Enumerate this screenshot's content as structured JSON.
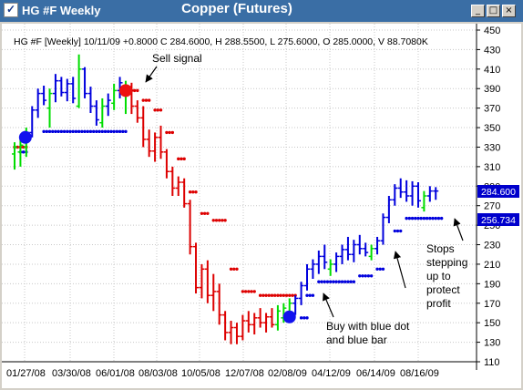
{
  "window": {
    "app_title": "HG #F Weekly",
    "chart_heading": "Copper (Futures)",
    "buttons": {
      "minimize": "_",
      "maximize": "□",
      "close": "×"
    }
  },
  "info_line": "HG #F [Weekly] 10/11/09 +0.8000 C 284.6000, H 288.5500, L 275.6000, O 285.0000, V 88.7080K",
  "annotations": {
    "sell": "Sell signal",
    "buy": [
      "Buy with blue dot",
      "and blue bar"
    ],
    "stops": [
      "Stops",
      "stepping",
      "up to",
      "protect",
      "profit"
    ]
  },
  "price_flags": {
    "last_price": "284.600",
    "stop_level": "256.734"
  },
  "colors": {
    "up_bar": "#00dd00",
    "down_bar": "#dd0000",
    "uptrend_bar": "#0000dd",
    "price_flag": "#0000cc"
  },
  "chart_data": {
    "type": "ohlc_bar",
    "symbol": "HG #F",
    "interval": "Weekly",
    "title": "Copper (Futures)",
    "ylim": [
      110,
      450
    ],
    "y_ticks": [
      110,
      130,
      150,
      170,
      190,
      210,
      230,
      250,
      270,
      290,
      310,
      330,
      350,
      370,
      390,
      410,
      430,
      450
    ],
    "x_ticks": [
      "01/27/08",
      "03/30/08",
      "06/01/08",
      "08/03/08",
      "10/05/08",
      "12/07/08",
      "02/08/09",
      "04/12/09",
      "06/14/09",
      "08/16/09"
    ],
    "grid": true,
    "last_close": 284.6,
    "last_stop": 256.734,
    "bars": [
      {
        "t": "up",
        "o": 323,
        "h": 335,
        "l": 307,
        "c": 330
      },
      {
        "t": "up",
        "o": 325,
        "h": 340,
        "l": 310,
        "c": 332
      },
      {
        "t": "up",
        "o": 330,
        "h": 350,
        "l": 320,
        "c": 345
      },
      {
        "t": "blue",
        "o": 345,
        "h": 372,
        "l": 340,
        "c": 368
      },
      {
        "t": "blue",
        "o": 368,
        "h": 390,
        "l": 360,
        "c": 385
      },
      {
        "t": "blue",
        "o": 385,
        "h": 393,
        "l": 373,
        "c": 378
      },
      {
        "t": "up",
        "o": 370,
        "h": 390,
        "l": 350,
        "c": 385
      },
      {
        "t": "blue",
        "o": 385,
        "h": 405,
        "l": 376,
        "c": 398
      },
      {
        "t": "blue",
        "o": 398,
        "h": 402,
        "l": 382,
        "c": 386
      },
      {
        "t": "blue",
        "o": 386,
        "h": 400,
        "l": 377,
        "c": 395
      },
      {
        "t": "blue",
        "o": 395,
        "h": 402,
        "l": 375,
        "c": 380
      },
      {
        "t": "up",
        "o": 372,
        "h": 425,
        "l": 370,
        "c": 410
      },
      {
        "t": "blue",
        "o": 410,
        "h": 412,
        "l": 380,
        "c": 385
      },
      {
        "t": "blue",
        "o": 385,
        "h": 392,
        "l": 365,
        "c": 372
      },
      {
        "t": "blue",
        "o": 372,
        "h": 378,
        "l": 352,
        "c": 358
      },
      {
        "t": "up",
        "o": 355,
        "h": 380,
        "l": 350,
        "c": 372
      },
      {
        "t": "blue",
        "o": 372,
        "h": 385,
        "l": 362,
        "c": 378
      },
      {
        "t": "up",
        "o": 375,
        "h": 395,
        "l": 368,
        "c": 388
      },
      {
        "t": "blue",
        "o": 388,
        "h": 402,
        "l": 380,
        "c": 396
      },
      {
        "t": "up",
        "o": 385,
        "h": 398,
        "l": 364,
        "c": 392
      },
      {
        "t": "down",
        "o": 392,
        "h": 396,
        "l": 364,
        "c": 372
      },
      {
        "t": "down",
        "o": 372,
        "h": 378,
        "l": 355,
        "c": 360
      },
      {
        "t": "down",
        "o": 360,
        "h": 372,
        "l": 330,
        "c": 338
      },
      {
        "t": "down",
        "o": 338,
        "h": 348,
        "l": 320,
        "c": 326
      },
      {
        "t": "down",
        "o": 326,
        "h": 345,
        "l": 315,
        "c": 340
      },
      {
        "t": "down",
        "o": 340,
        "h": 352,
        "l": 318,
        "c": 325
      },
      {
        "t": "down",
        "o": 325,
        "h": 328,
        "l": 298,
        "c": 305
      },
      {
        "t": "down",
        "o": 305,
        "h": 310,
        "l": 280,
        "c": 288
      },
      {
        "t": "down",
        "o": 288,
        "h": 300,
        "l": 280,
        "c": 294
      },
      {
        "t": "down",
        "o": 294,
        "h": 298,
        "l": 268,
        "c": 272
      },
      {
        "t": "down",
        "o": 272,
        "h": 276,
        "l": 220,
        "c": 228
      },
      {
        "t": "down",
        "o": 228,
        "h": 232,
        "l": 180,
        "c": 186
      },
      {
        "t": "down",
        "o": 186,
        "h": 210,
        "l": 175,
        "c": 205
      },
      {
        "t": "down",
        "o": 205,
        "h": 214,
        "l": 170,
        "c": 178
      },
      {
        "t": "down",
        "o": 178,
        "h": 200,
        "l": 162,
        "c": 182
      },
      {
        "t": "down",
        "o": 182,
        "h": 190,
        "l": 148,
        "c": 158
      },
      {
        "t": "down",
        "o": 158,
        "h": 162,
        "l": 132,
        "c": 140
      },
      {
        "t": "down",
        "o": 140,
        "h": 152,
        "l": 128,
        "c": 145
      },
      {
        "t": "down",
        "o": 145,
        "h": 150,
        "l": 128,
        "c": 136
      },
      {
        "t": "down",
        "o": 136,
        "h": 158,
        "l": 132,
        "c": 152
      },
      {
        "t": "down",
        "o": 152,
        "h": 162,
        "l": 140,
        "c": 148
      },
      {
        "t": "down",
        "o": 148,
        "h": 160,
        "l": 138,
        "c": 155
      },
      {
        "t": "down",
        "o": 155,
        "h": 165,
        "l": 145,
        "c": 150
      },
      {
        "t": "down",
        "o": 150,
        "h": 160,
        "l": 140,
        "c": 156
      },
      {
        "t": "down",
        "o": 156,
        "h": 165,
        "l": 145,
        "c": 148
      },
      {
        "t": "up",
        "o": 148,
        "h": 168,
        "l": 142,
        "c": 162
      },
      {
        "t": "up",
        "o": 155,
        "h": 170,
        "l": 150,
        "c": 165
      },
      {
        "t": "up",
        "o": 160,
        "h": 175,
        "l": 155,
        "c": 170
      },
      {
        "t": "blue",
        "o": 170,
        "h": 178,
        "l": 158,
        "c": 175
      },
      {
        "t": "blue",
        "o": 175,
        "h": 192,
        "l": 168,
        "c": 188
      },
      {
        "t": "blue",
        "o": 188,
        "h": 210,
        "l": 183,
        "c": 205
      },
      {
        "t": "blue",
        "o": 205,
        "h": 215,
        "l": 195,
        "c": 210
      },
      {
        "t": "blue",
        "o": 210,
        "h": 224,
        "l": 200,
        "c": 218
      },
      {
        "t": "blue",
        "o": 218,
        "h": 230,
        "l": 205,
        "c": 212
      },
      {
        "t": "up",
        "o": 205,
        "h": 215,
        "l": 198,
        "c": 210
      },
      {
        "t": "blue",
        "o": 210,
        "h": 222,
        "l": 202,
        "c": 218
      },
      {
        "t": "blue",
        "o": 218,
        "h": 230,
        "l": 210,
        "c": 225
      },
      {
        "t": "blue",
        "o": 225,
        "h": 238,
        "l": 214,
        "c": 220
      },
      {
        "t": "blue",
        "o": 220,
        "h": 235,
        "l": 212,
        "c": 230
      },
      {
        "t": "blue",
        "o": 230,
        "h": 240,
        "l": 220,
        "c": 226
      },
      {
        "t": "blue",
        "o": 226,
        "h": 232,
        "l": 218,
        "c": 222
      },
      {
        "t": "up",
        "o": 218,
        "h": 230,
        "l": 214,
        "c": 226
      },
      {
        "t": "blue",
        "o": 226,
        "h": 238,
        "l": 220,
        "c": 234
      },
      {
        "t": "blue",
        "o": 234,
        "h": 262,
        "l": 230,
        "c": 258
      },
      {
        "t": "blue",
        "o": 258,
        "h": 280,
        "l": 252,
        "c": 276
      },
      {
        "t": "blue",
        "o": 276,
        "h": 292,
        "l": 270,
        "c": 288
      },
      {
        "t": "blue",
        "o": 288,
        "h": 298,
        "l": 278,
        "c": 284
      },
      {
        "t": "blue",
        "o": 284,
        "h": 296,
        "l": 274,
        "c": 280
      },
      {
        "t": "blue",
        "o": 280,
        "h": 295,
        "l": 270,
        "c": 290
      },
      {
        "t": "blue",
        "o": 290,
        "h": 294,
        "l": 268,
        "c": 275
      },
      {
        "t": "up",
        "o": 268,
        "h": 285,
        "l": 264,
        "c": 280
      },
      {
        "t": "blue",
        "o": 280,
        "h": 290,
        "l": 274,
        "c": 285
      },
      {
        "t": "blue",
        "o": 285,
        "h": 289,
        "l": 276,
        "c": 285
      }
    ],
    "stop_segments": [
      {
        "from": 0,
        "to": 2,
        "level": 330,
        "color": "red"
      },
      {
        "from": 1,
        "to": 2,
        "level": 325,
        "color": "blue"
      },
      {
        "from": 5,
        "to": 19,
        "level": 346,
        "color": "blue"
      },
      {
        "from": 20,
        "to": 21,
        "level": 388,
        "color": "red"
      },
      {
        "from": 22,
        "to": 23,
        "level": 378,
        "color": "red"
      },
      {
        "from": 24,
        "to": 25,
        "level": 368,
        "color": "red"
      },
      {
        "from": 26,
        "to": 27,
        "level": 345,
        "color": "red"
      },
      {
        "from": 28,
        "to": 29,
        "level": 318,
        "color": "red"
      },
      {
        "from": 30,
        "to": 31,
        "level": 284,
        "color": "red"
      },
      {
        "from": 32,
        "to": 33,
        "level": 262,
        "color": "red"
      },
      {
        "from": 34,
        "to": 36,
        "level": 255,
        "color": "red"
      },
      {
        "from": 37,
        "to": 38,
        "level": 205,
        "color": "red"
      },
      {
        "from": 39,
        "to": 41,
        "level": 182,
        "color": "red"
      },
      {
        "from": 42,
        "to": 48,
        "level": 178,
        "color": "red"
      },
      {
        "from": 49,
        "to": 50,
        "level": 155,
        "color": "blue"
      },
      {
        "from": 50,
        "to": 51,
        "level": 178,
        "color": "blue"
      },
      {
        "from": 52,
        "to": 58,
        "level": 192,
        "color": "blue"
      },
      {
        "from": 59,
        "to": 61,
        "level": 198,
        "color": "blue"
      },
      {
        "from": 62,
        "to": 63,
        "level": 205,
        "color": "blue"
      },
      {
        "from": 65,
        "to": 66,
        "level": 244,
        "color": "blue"
      },
      {
        "from": 67,
        "to": 73,
        "level": 257,
        "color": "blue"
      }
    ],
    "signals": [
      {
        "bar": 2,
        "price": 340,
        "type": "buy",
        "color": "blue"
      },
      {
        "bar": 19,
        "price": 388,
        "type": "sell",
        "color": "red"
      },
      {
        "bar": 47,
        "price": 156,
        "type": "buy",
        "color": "blue"
      }
    ]
  }
}
